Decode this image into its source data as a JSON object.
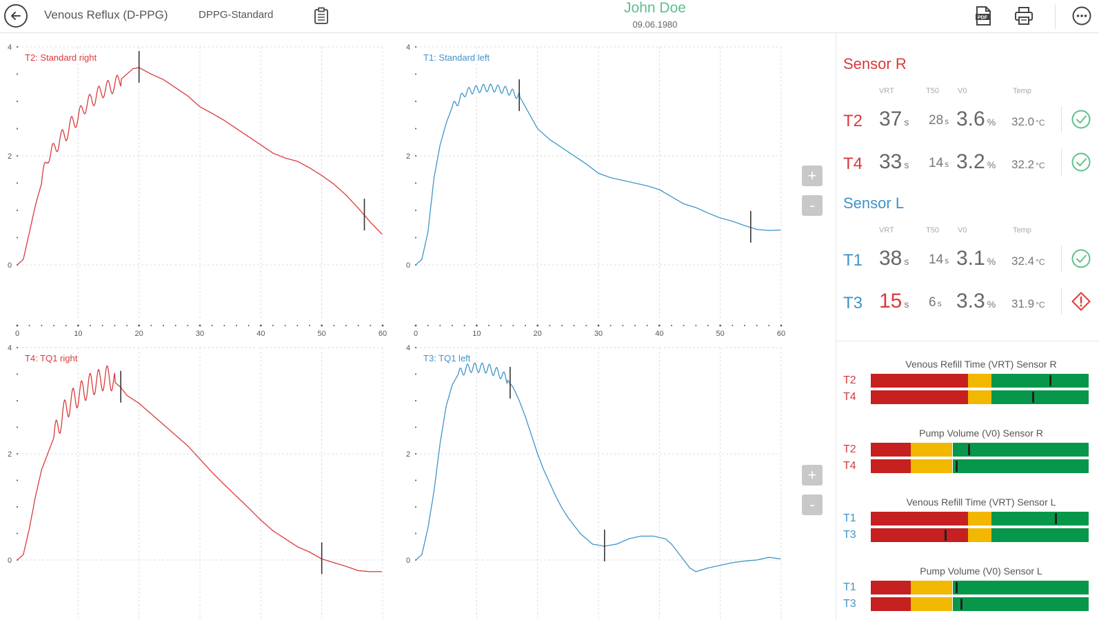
{
  "colors": {
    "right": "#d9393c",
    "left": "#3f93c8",
    "name": "#5cc08a",
    "bar_red": "#c62020",
    "bar_yellow": "#f2b700",
    "bar_green": "#07974a",
    "ok": "#5cc08a",
    "warn": "#e53935"
  },
  "header": {
    "title": "Venous Reflux (D-PPG)",
    "protocol": "DPPG-Standard",
    "patient_name": "John Doe",
    "patient_dob": "09.06.1980",
    "icons": [
      "back-arrow-icon",
      "clipboard-icon",
      "pdf-icon",
      "printer-icon",
      "more-icon"
    ]
  },
  "zoom": {
    "plus": "+",
    "minus": "-"
  },
  "charts": [
    {
      "id": "t2",
      "label": "T2: Standard right",
      "color_key": "right",
      "xticks": [
        "0",
        "10",
        "20",
        "30",
        "40",
        "50",
        "60"
      ],
      "yticks": [
        "4",
        "2",
        "0"
      ],
      "xlim": [
        0,
        60
      ],
      "ylim": [
        0,
        4
      ],
      "markers": [
        20,
        57
      ],
      "curve": [
        [
          0,
          0
        ],
        [
          1,
          0.1
        ],
        [
          2,
          0.6
        ],
        [
          3,
          1.1
        ],
        [
          4,
          1.5
        ],
        [
          5,
          2
        ],
        [
          6,
          2.1
        ],
        [
          7,
          2.3
        ],
        [
          8,
          2.4
        ],
        [
          9,
          2.6
        ],
        [
          10,
          2.7
        ],
        [
          11,
          2.9
        ],
        [
          12,
          3.0
        ],
        [
          13,
          3.1
        ],
        [
          14,
          3.2
        ],
        [
          15,
          3.25
        ],
        [
          16,
          3.3
        ],
        [
          17,
          3.4
        ],
        [
          18,
          3.5
        ],
        [
          19,
          3.6
        ],
        [
          20,
          3.62
        ],
        [
          22,
          3.5
        ],
        [
          24,
          3.4
        ],
        [
          26,
          3.25
        ],
        [
          28,
          3.1
        ],
        [
          30,
          2.9
        ],
        [
          32,
          2.78
        ],
        [
          34,
          2.65
        ],
        [
          36,
          2.5
        ],
        [
          38,
          2.35
        ],
        [
          40,
          2.2
        ],
        [
          42,
          2.05
        ],
        [
          44,
          1.96
        ],
        [
          46,
          1.9
        ],
        [
          48,
          1.78
        ],
        [
          50,
          1.64
        ],
        [
          52,
          1.48
        ],
        [
          54,
          1.28
        ],
        [
          56,
          1.04
        ],
        [
          58,
          0.78
        ],
        [
          60,
          0.55
        ]
      ],
      "osc_amp": 0.14,
      "osc_period": 1.5,
      "osc_range": [
        4,
        17
      ]
    },
    {
      "id": "t1",
      "label": "T1: Standard left",
      "color_key": "left",
      "xticks": [
        "0",
        "10",
        "20",
        "30",
        "40",
        "50",
        "60"
      ],
      "yticks": [
        "4",
        "2",
        "0"
      ],
      "xlim": [
        0,
        60
      ],
      "ylim": [
        0,
        4
      ],
      "markers": [
        17,
        55
      ],
      "curve": [
        [
          0,
          0
        ],
        [
          1,
          0.1
        ],
        [
          2,
          0.6
        ],
        [
          3,
          1.6
        ],
        [
          4,
          2.2
        ],
        [
          5,
          2.6
        ],
        [
          6,
          2.9
        ],
        [
          7,
          3.0
        ],
        [
          8,
          3.15
        ],
        [
          9,
          3.2
        ],
        [
          10,
          3.22
        ],
        [
          11,
          3.24
        ],
        [
          12,
          3.25
        ],
        [
          13,
          3.24
        ],
        [
          14,
          3.22
        ],
        [
          15,
          3.2
        ],
        [
          16,
          3.15
        ],
        [
          17,
          3.1
        ],
        [
          18,
          2.9
        ],
        [
          19,
          2.7
        ],
        [
          20,
          2.5
        ],
        [
          22,
          2.3
        ],
        [
          24,
          2.15
        ],
        [
          26,
          2.0
        ],
        [
          28,
          1.85
        ],
        [
          30,
          1.68
        ],
        [
          32,
          1.6
        ],
        [
          34,
          1.55
        ],
        [
          36,
          1.5
        ],
        [
          38,
          1.45
        ],
        [
          40,
          1.38
        ],
        [
          42,
          1.25
        ],
        [
          44,
          1.12
        ],
        [
          46,
          1.05
        ],
        [
          48,
          0.95
        ],
        [
          50,
          0.86
        ],
        [
          52,
          0.8
        ],
        [
          54,
          0.72
        ],
        [
          56,
          0.65
        ],
        [
          58,
          0.63
        ],
        [
          60,
          0.64
        ]
      ],
      "osc_amp": 0.07,
      "osc_period": 1.2,
      "osc_range": [
        6,
        17
      ]
    },
    {
      "id": "t4",
      "label": "T4: TQ1 right",
      "color_key": "right",
      "xticks": [],
      "yticks": [
        "4",
        "2",
        "0"
      ],
      "xlim": [
        0,
        60
      ],
      "ylim": [
        0,
        4
      ],
      "markers": [
        17,
        50
      ],
      "curve": [
        [
          0,
          0
        ],
        [
          1,
          0.1
        ],
        [
          2,
          0.6
        ],
        [
          3,
          1.2
        ],
        [
          4,
          1.7
        ],
        [
          5,
          2.0
        ],
        [
          6,
          2.3
        ],
        [
          7,
          2.6
        ],
        [
          8,
          2.85
        ],
        [
          9,
          3.0
        ],
        [
          10,
          3.1
        ],
        [
          11,
          3.2
        ],
        [
          12,
          3.3
        ],
        [
          13,
          3.35
        ],
        [
          14,
          3.4
        ],
        [
          15,
          3.45
        ],
        [
          16,
          3.35
        ],
        [
          17,
          3.25
        ],
        [
          18,
          3.1
        ],
        [
          20,
          2.95
        ],
        [
          22,
          2.75
        ],
        [
          24,
          2.55
        ],
        [
          26,
          2.35
        ],
        [
          28,
          2.15
        ],
        [
          30,
          1.9
        ],
        [
          32,
          1.65
        ],
        [
          34,
          1.42
        ],
        [
          36,
          1.2
        ],
        [
          38,
          0.98
        ],
        [
          40,
          0.75
        ],
        [
          42,
          0.55
        ],
        [
          44,
          0.4
        ],
        [
          46,
          0.25
        ],
        [
          48,
          0.15
        ],
        [
          50,
          0.02
        ],
        [
          52,
          -0.05
        ],
        [
          54,
          -0.12
        ],
        [
          56,
          -0.2
        ],
        [
          58,
          -0.22
        ],
        [
          60,
          -0.22
        ]
      ],
      "osc_amp": 0.22,
      "osc_period": 1.4,
      "osc_range": [
        6,
        16
      ]
    },
    {
      "id": "t3",
      "label": "T3: TQ1 left",
      "color_key": "left",
      "xticks": [],
      "yticks": [
        "4",
        "2",
        "0"
      ],
      "xlim": [
        0,
        60
      ],
      "ylim": [
        0,
        4
      ],
      "markers": [
        15.5,
        31
      ],
      "curve": [
        [
          0,
          0
        ],
        [
          1,
          0.1
        ],
        [
          2,
          0.6
        ],
        [
          3,
          1.3
        ],
        [
          4,
          2.2
        ],
        [
          5,
          2.9
        ],
        [
          6,
          3.3
        ],
        [
          7,
          3.5
        ],
        [
          8,
          3.58
        ],
        [
          9,
          3.62
        ],
        [
          10,
          3.62
        ],
        [
          11,
          3.62
        ],
        [
          12,
          3.6
        ],
        [
          13,
          3.55
        ],
        [
          14,
          3.5
        ],
        [
          15,
          3.4
        ],
        [
          16,
          3.25
        ],
        [
          17,
          3.0
        ],
        [
          18,
          2.7
        ],
        [
          19,
          2.35
        ],
        [
          20,
          2.0
        ],
        [
          21,
          1.7
        ],
        [
          22,
          1.45
        ],
        [
          23,
          1.2
        ],
        [
          24,
          0.98
        ],
        [
          25,
          0.8
        ],
        [
          26,
          0.65
        ],
        [
          27,
          0.5
        ],
        [
          28,
          0.4
        ],
        [
          29,
          0.3
        ],
        [
          30,
          0.28
        ],
        [
          31,
          0.26
        ],
        [
          33,
          0.3
        ],
        [
          35,
          0.4
        ],
        [
          37,
          0.45
        ],
        [
          39,
          0.45
        ],
        [
          41,
          0.4
        ],
        [
          42,
          0.3
        ],
        [
          43,
          0.15
        ],
        [
          44,
          0.0
        ],
        [
          45,
          -0.15
        ],
        [
          46,
          -0.22
        ],
        [
          48,
          -0.15
        ],
        [
          50,
          -0.1
        ],
        [
          52,
          -0.05
        ],
        [
          54,
          -0.02
        ],
        [
          56,
          0.0
        ],
        [
          58,
          0.05
        ],
        [
          60,
          0.02
        ]
      ],
      "osc_amp": 0.09,
      "osc_period": 1.2,
      "osc_range": [
        7,
        15
      ]
    }
  ],
  "sensor_r": {
    "title": "Sensor R",
    "headers": {
      "vrt": "VRT",
      "t50": "T50",
      "v0": "V0",
      "temp": "Temp"
    },
    "rows": [
      {
        "name": "T2",
        "vrt": "37",
        "t50": "28",
        "v0": "3.6",
        "temp": "32.0",
        "status": "ok"
      },
      {
        "name": "T4",
        "vrt": "33",
        "t50": "14",
        "v0": "3.2",
        "temp": "32.2",
        "status": "ok"
      }
    ]
  },
  "sensor_l": {
    "title": "Sensor L",
    "headers": {
      "vrt": "VRT",
      "t50": "T50",
      "v0": "V0",
      "temp": "Temp"
    },
    "rows": [
      {
        "name": "T1",
        "vrt": "38",
        "t50": "14",
        "v0": "3.1",
        "temp": "32.4",
        "status": "ok"
      },
      {
        "name": "T3",
        "vrt": "15",
        "t50": "6",
        "v0": "3.3",
        "temp": "31.9",
        "status": "warn"
      }
    ]
  },
  "units": {
    "s": "s",
    "pct": "%",
    "temp": "°C"
  },
  "bar_groups": [
    {
      "title": "Venous Refill Time (VRT) Sensor R",
      "color_key": "right",
      "segments": [
        0.445,
        0.11,
        0.445
      ],
      "rows": [
        {
          "name": "T2",
          "marker": 0.82
        },
        {
          "name": "T4",
          "marker": 0.74
        }
      ]
    },
    {
      "title": "Pump Volume (V0) Sensor R",
      "color_key": "right",
      "segments": [
        0.185,
        0.19,
        0.625
      ],
      "rows": [
        {
          "name": "T2",
          "marker": 0.445
        },
        {
          "name": "T4",
          "marker": 0.39
        }
      ]
    },
    {
      "title": "Venous Refill Time (VRT) Sensor L",
      "color_key": "left",
      "segments": [
        0.445,
        0.11,
        0.445
      ],
      "rows": [
        {
          "name": "T1",
          "marker": 0.845
        },
        {
          "name": "T3",
          "marker": 0.34
        }
      ]
    },
    {
      "title": "Pump Volume (V0) Sensor L",
      "color_key": "left",
      "segments": [
        0.185,
        0.19,
        0.625
      ],
      "rows": [
        {
          "name": "T1",
          "marker": 0.39
        },
        {
          "name": "T3",
          "marker": 0.41
        }
      ]
    }
  ]
}
